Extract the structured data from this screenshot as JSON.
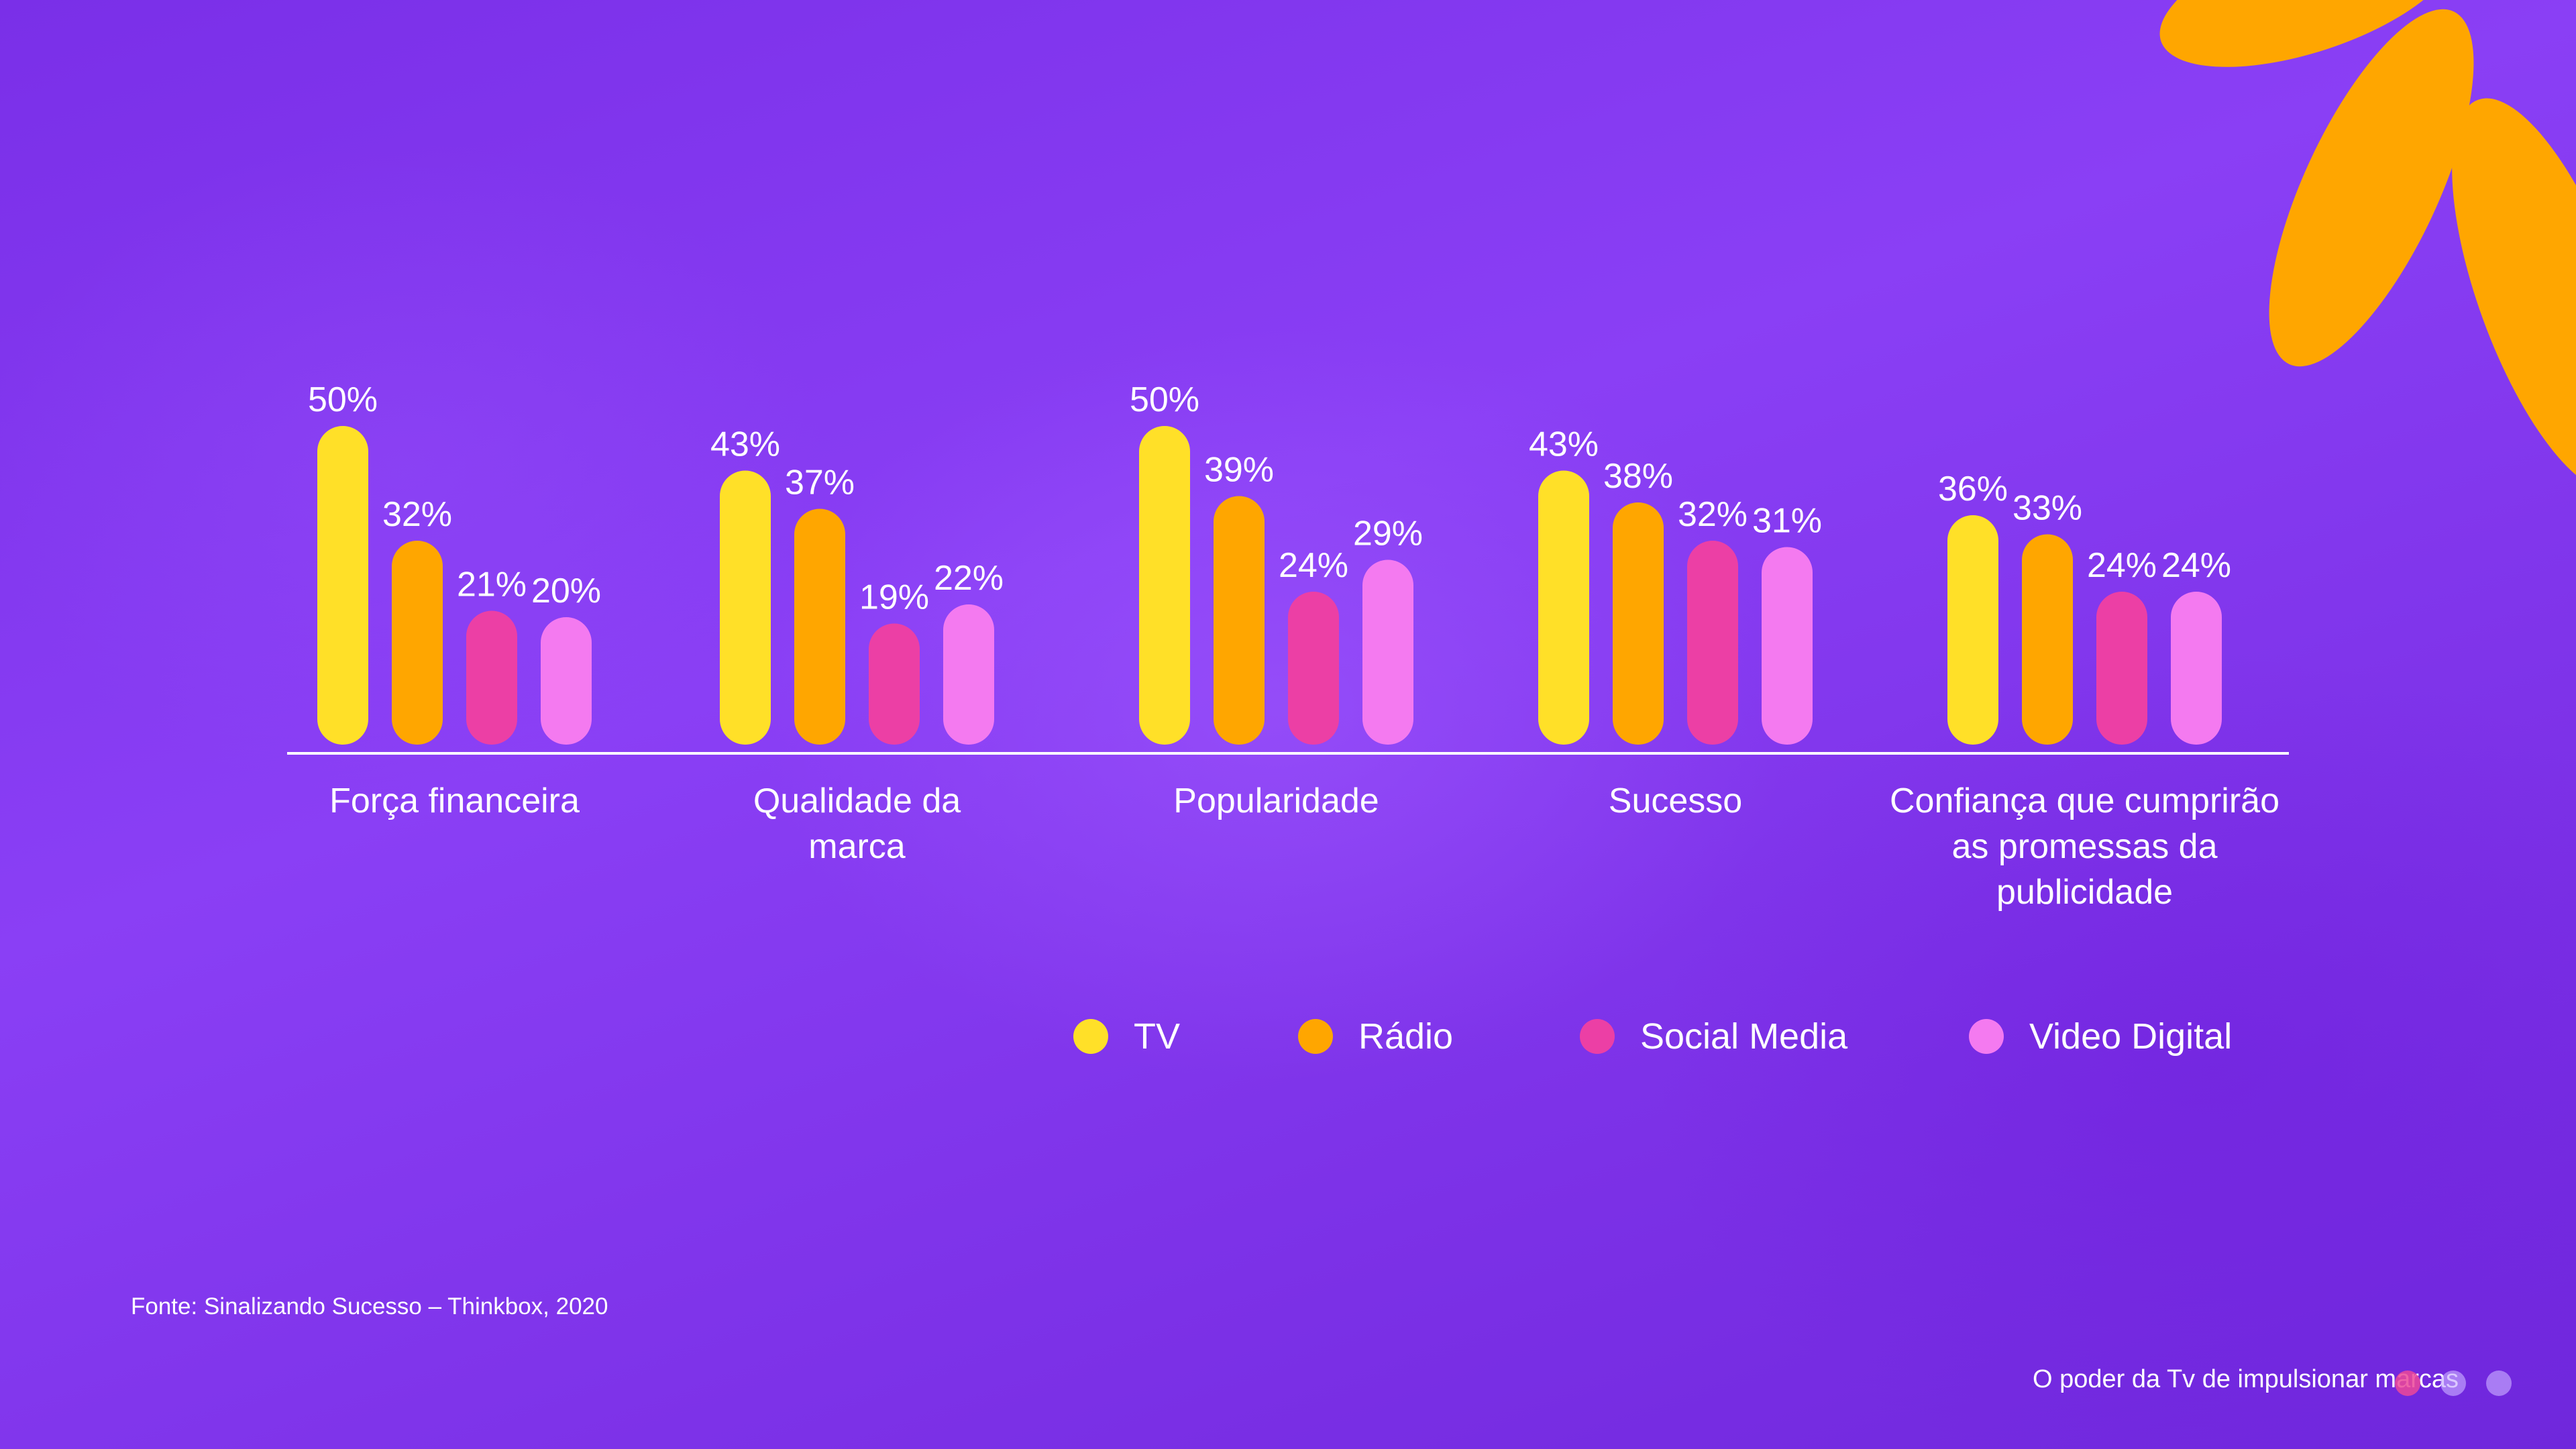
{
  "chart_data": {
    "type": "bar",
    "categories": [
      "Força financeira",
      "Qualidade da marca",
      "Popularidade",
      "Sucesso",
      "Confiança que cumprirão as promessas da publicidade"
    ],
    "category_lines": [
      [
        "Força financeira"
      ],
      [
        "Qualidade da",
        "marca"
      ],
      [
        "Popularidade"
      ],
      [
        "Sucesso"
      ],
      [
        "Confiança que cumprirão",
        "as promessas da",
        "publicidade"
      ]
    ],
    "series": [
      {
        "name": "TV",
        "values": [
          50,
          43,
          50,
          43,
          36
        ],
        "color": "#ffe028"
      },
      {
        "name": "Rádio",
        "values": [
          32,
          37,
          39,
          38,
          33
        ],
        "color": "#ffa600"
      },
      {
        "name": "Social Media",
        "values": [
          21,
          19,
          24,
          32,
          24
        ],
        "color": "#ec3fa5"
      },
      {
        "name": "Video Digital",
        "values": [
          20,
          22,
          29,
          31,
          24
        ],
        "color": "#f47af0"
      }
    ],
    "value_suffix": "%",
    "ylim": [
      0,
      50
    ],
    "legend_position": "bottom-right",
    "grid": false
  },
  "source": "Fonte: Sinalizando Sucesso – Thinkbox, 2020",
  "footer": "O poder da Tv de impulsionar marcas",
  "colors": {
    "background": "#7f35ec",
    "accent_orange": "#ffa600",
    "text": "#ffffff"
  }
}
